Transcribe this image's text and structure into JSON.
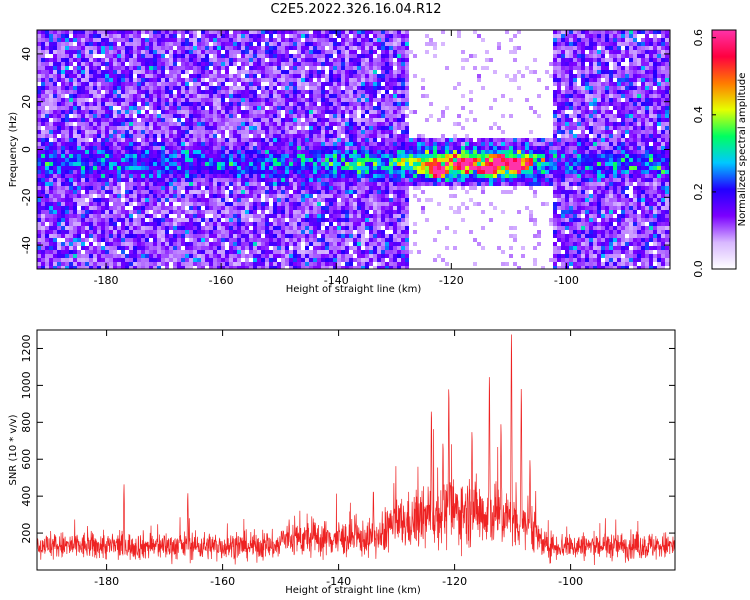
{
  "title": "C2E5.2022.326.16.04.R12",
  "colors": {
    "snr_line": "#ee2222",
    "colormap": [
      "#ffffff",
      "#d8b8ff",
      "#7b00ff",
      "#2200ff",
      "#00c8ff",
      "#00ff60",
      "#e6ff00",
      "#ff7a00",
      "#ff0040",
      "#ff33aa"
    ]
  },
  "chart_data": [
    {
      "type": "heatmap",
      "xlabel": "Height of straight line (km)",
      "ylabel": "Frequency (Hz)",
      "xlim": [
        -192,
        -82
      ],
      "ylim": [
        -50,
        50
      ],
      "xticks": [
        -180,
        -160,
        -140,
        -120,
        -100
      ],
      "yticks": [
        -40,
        -20,
        0,
        20,
        40
      ],
      "colorbar": {
        "label": "Normalized spectral amplitude",
        "range": [
          0.0,
          0.62
        ],
        "ticks": [
          "0.0",
          "0.2",
          "0.4",
          "0.6"
        ]
      },
      "description_of_signal": "broadband noise with band near -5 Hz strongest between -126 and -106 km",
      "band_center_hz": -5,
      "hot_spots": [
        {
          "x": -122.6,
          "y": -9,
          "value": 0.55
        },
        {
          "x": -109.4,
          "y": -6,
          "value": 0.55
        },
        {
          "x": -114,
          "y": -8,
          "value": 0.42
        },
        {
          "x": -118,
          "y": -5,
          "value": 0.38
        },
        {
          "x": -112,
          "y": -4,
          "value": 0.36
        }
      ]
    },
    {
      "type": "line",
      "xlabel": "Height of straight line (km)",
      "ylabel": "SNR (10 * v/v)",
      "xlim": [
        -192,
        -82
      ],
      "ylim": [
        0,
        1300
      ],
      "xticks": [
        -180,
        -160,
        -140,
        -120,
        -100
      ],
      "yticks": [
        200,
        400,
        600,
        800,
        1000,
        1200
      ],
      "series": [
        {
          "baseline_noise_mean": 130,
          "peaks": [
            {
              "x": -177,
              "y": 465
            },
            {
              "x": -166,
              "y": 420
            },
            {
              "x": -134,
              "y": 440
            },
            {
              "x": -124,
              "y": 880
            },
            {
              "x": -122,
              "y": 700
            },
            {
              "x": -121,
              "y": 1000
            },
            {
              "x": -117,
              "y": 760
            },
            {
              "x": -114,
              "y": 1060
            },
            {
              "x": -112,
              "y": 800
            },
            {
              "x": -110.2,
              "y": 1290
            },
            {
              "x": -108.5,
              "y": 990
            },
            {
              "x": -107,
              "y": 600
            }
          ]
        }
      ]
    }
  ]
}
